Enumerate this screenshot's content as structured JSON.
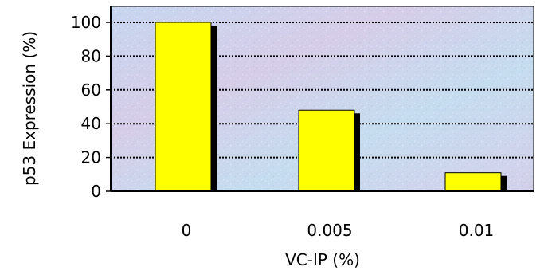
{
  "chart_data": {
    "type": "bar",
    "categories": [
      "0",
      "0.005",
      "0.01"
    ],
    "values": [
      100,
      48,
      11
    ],
    "xlabel": "VC-IP (%)",
    "ylabel": "p53 Expression (%)",
    "ylim": [
      0,
      100
    ],
    "yticks": [
      "0",
      "20",
      "40",
      "60",
      "80",
      "100"
    ],
    "grid": true,
    "legend": "none",
    "colors": {
      "bar_fill": "#ffff00",
      "bar_shadow": "#000000",
      "plot_background": "#c9d8ef",
      "gridline": "#000000"
    }
  }
}
